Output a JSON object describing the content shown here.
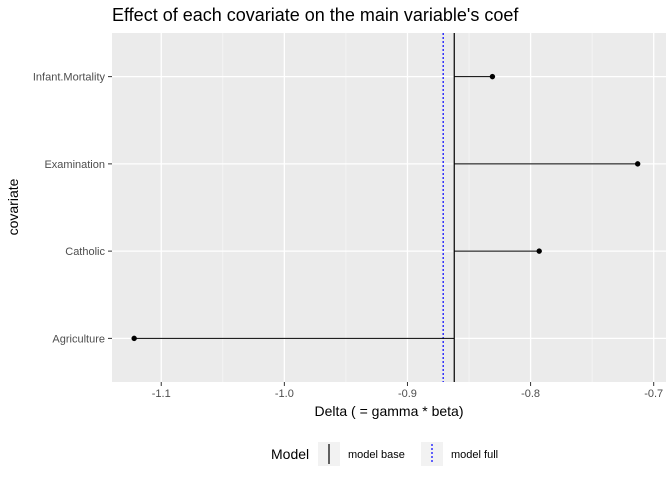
{
  "chart_data": {
    "type": "scatter",
    "title": "Effect of each covariate on the main variable's coef",
    "xlabel": "Delta ( = gamma * beta)",
    "ylabel": "covariate",
    "xlim": [
      -1.14,
      -0.69
    ],
    "x_ticks": [
      -1.1,
      -1.0,
      -0.9,
      -0.8,
      -0.7
    ],
    "x_tick_labels": [
      "-1.1",
      "-1.0",
      "-0.9",
      "-0.8",
      "-0.7"
    ],
    "categories": [
      "Infant.Mortality",
      "Examination",
      "Catholic",
      "Agriculture"
    ],
    "values": [
      -0.831,
      -0.713,
      -0.793,
      -1.122
    ],
    "segment_origin": -0.862,
    "grid": true,
    "reference_lines": [
      {
        "label": "model base",
        "x": -0.862,
        "color": "#000000",
        "linetype": "solid"
      },
      {
        "label": "model full",
        "x": -0.871,
        "color": "#0000ff",
        "linetype": "dotted"
      }
    ],
    "legend": {
      "title": "Model",
      "placement": "bottom"
    }
  }
}
